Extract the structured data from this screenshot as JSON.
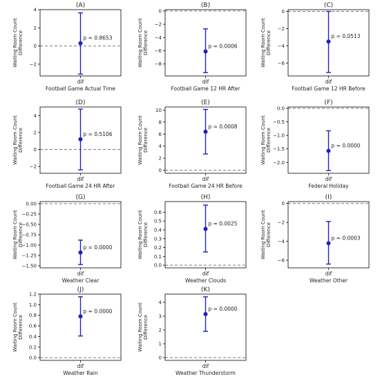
{
  "figure": {
    "ylabel_line1": "Waiting Room Count",
    "ylabel_line2": "Difference",
    "xtick": "dif"
  },
  "colors": {
    "marker": "#1f1fbf",
    "ref_line": "#777777",
    "axis": "#000000"
  },
  "chart_data": [
    {
      "type": "scatter",
      "title": "(A)",
      "xlabel": "Football Game Actual Time",
      "ylabel": "Waiting Room Count Difference",
      "x": [
        "dif"
      ],
      "ylim": [
        -3.3,
        4.0
      ],
      "yticks": [
        -2,
        0,
        2,
        4
      ],
      "tick_decimals": 0,
      "value": 0.3,
      "ci": [
        -3.1,
        3.65
      ],
      "annotation": "p = 0.8653",
      "reference_line": 0
    },
    {
      "type": "scatter",
      "title": "(B)",
      "xlabel": "Football Game 12 HR After",
      "ylabel": "Waiting Room Count Difference",
      "x": [
        "dif"
      ],
      "ylim": [
        -9.8,
        0.2
      ],
      "yticks": [
        -8,
        -6,
        -4,
        -2,
        0
      ],
      "tick_decimals": 0,
      "value": -6.1,
      "ci": [
        -9.3,
        -2.7
      ],
      "annotation": "p = 0.0006",
      "reference_line": 0
    },
    {
      "type": "scatter",
      "title": "(C)",
      "xlabel": "Football Game 12 HR Before",
      "ylabel": "Waiting Room Count Difference",
      "x": [
        "dif"
      ],
      "ylim": [
        -7.5,
        0.2
      ],
      "yticks": [
        -6,
        -4,
        -2,
        0
      ],
      "tick_decimals": 0,
      "value": -3.5,
      "ci": [
        -7.1,
        0.0
      ],
      "annotation": "p = 0.0513",
      "reference_line": 0
    },
    {
      "type": "scatter",
      "title": "(D)",
      "xlabel": "Football Game 24 HR After",
      "ylabel": "Waiting Room Count Difference",
      "x": [
        "dif"
      ],
      "ylim": [
        -2.8,
        5.0
      ],
      "yticks": [
        -2,
        0,
        2,
        4
      ],
      "tick_decimals": 0,
      "value": 1.2,
      "ci": [
        -2.4,
        4.75
      ],
      "annotation": "p = 0.5106",
      "reference_line": 0
    },
    {
      "type": "scatter",
      "title": "(E)",
      "xlabel": "Football Game 24 HR Before",
      "ylabel": "Waiting Room Count Difference",
      "x": [
        "dif"
      ],
      "ylim": [
        -0.5,
        10.5
      ],
      "yticks": [
        0,
        2,
        4,
        6,
        8,
        10
      ],
      "tick_decimals": 0,
      "value": 6.4,
      "ci": [
        2.7,
        10.1
      ],
      "annotation": "p = 0.0008",
      "reference_line": 0
    },
    {
      "type": "scatter",
      "title": "(F)",
      "xlabel": "Federal Holiday",
      "ylabel": "Waiting Room Count Difference",
      "x": [
        "dif"
      ],
      "ylim": [
        -2.4,
        0.05
      ],
      "yticks": [
        -2.0,
        -1.5,
        -1.0,
        -0.5,
        0.0
      ],
      "tick_decimals": 1,
      "value": -1.57,
      "ci": [
        -2.3,
        -0.83
      ],
      "annotation": "p = 0.0000",
      "reference_line": 0
    },
    {
      "type": "scatter",
      "title": "(G)",
      "xlabel": "Weather Clear",
      "ylabel": "Waiting Room Count Difference",
      "x": [
        "dif"
      ],
      "ylim": [
        -1.55,
        0.05
      ],
      "yticks": [
        -1.5,
        -1.25,
        -1.0,
        -0.75,
        -0.5,
        -0.25,
        0.0
      ],
      "tick_decimals": 2,
      "value": -1.18,
      "ci": [
        -1.47,
        -0.88
      ],
      "annotation": "p = 0.0000",
      "reference_line": 0
    },
    {
      "type": "scatter",
      "title": "(H)",
      "xlabel": "Weather Clouds",
      "ylabel": "Waiting Room Count Difference",
      "x": [
        "dif"
      ],
      "ylim": [
        -0.03,
        0.72
      ],
      "yticks": [
        0.0,
        0.1,
        0.2,
        0.3,
        0.4,
        0.5,
        0.6
      ],
      "tick_decimals": 1,
      "value": 0.41,
      "ci": [
        0.15,
        0.68
      ],
      "annotation": "p = 0.0025",
      "reference_line": 0
    },
    {
      "type": "scatter",
      "title": "(I)",
      "xlabel": "Weather Other",
      "ylabel": "Waiting Room Count Difference",
      "x": [
        "dif"
      ],
      "ylim": [
        -6.8,
        0.2
      ],
      "yticks": [
        -6,
        -4,
        -2,
        0
      ],
      "tick_decimals": 0,
      "value": -4.2,
      "ci": [
        -6.4,
        -1.9
      ],
      "annotation": "p = 0.0003",
      "reference_line": 0
    },
    {
      "type": "scatter",
      "title": "(J)",
      "xlabel": "Weather Rain",
      "ylabel": "Waiting Room Count Difference",
      "x": [
        "dif"
      ],
      "ylim": [
        -0.05,
        1.2
      ],
      "yticks": [
        0.0,
        0.2,
        0.4,
        0.6,
        0.8,
        1.0,
        1.2
      ],
      "tick_decimals": 1,
      "value": 0.78,
      "ci": [
        0.41,
        1.15
      ],
      "annotation": "p = 0.0000",
      "reference_line": 0
    },
    {
      "type": "scatter",
      "title": "(K)",
      "xlabel": "Weather Thunderstorm",
      "ylabel": "Waiting Room Count Difference",
      "x": [
        "dif"
      ],
      "ylim": [
        -0.2,
        4.6
      ],
      "yticks": [
        0,
        1,
        2,
        3,
        4
      ],
      "tick_decimals": 0,
      "value": 3.15,
      "ci": [
        1.9,
        4.4
      ],
      "annotation": "p = 0.0000",
      "reference_line": 0
    }
  ]
}
